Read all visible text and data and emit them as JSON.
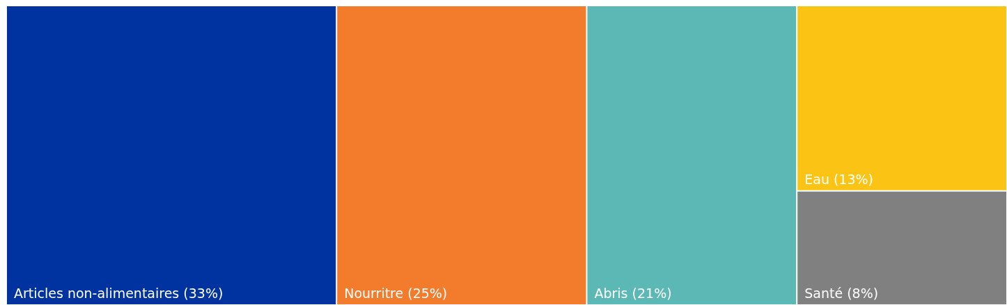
{
  "chart_data": {
    "type": "other",
    "categories": [
      "Articles non-alimentaires",
      "Nourritre",
      "Abris",
      "Eau",
      "Santé"
    ],
    "values": [
      33,
      25,
      21,
      13,
      8
    ],
    "value_labels": [
      "(33%)",
      "(25%)",
      "(21%)",
      "(13%)",
      "(8%)"
    ],
    "colors": [
      "#0033a0",
      "#f27b2c",
      "#5cb8b4",
      "#fbc313",
      "#808080"
    ]
  }
}
